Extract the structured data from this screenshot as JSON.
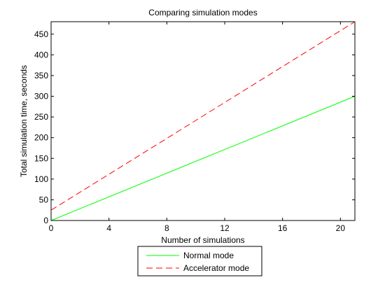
{
  "chart_data": {
    "type": "line",
    "title": "Comparing simulation modes",
    "xlabel": "Number of simulations",
    "ylabel": "Total simulation time, seconds",
    "xlim": [
      0,
      21
    ],
    "ylim": [
      0,
      480
    ],
    "xticks": [
      0,
      4,
      8,
      12,
      16,
      20
    ],
    "yticks": [
      0,
      50,
      100,
      150,
      200,
      250,
      300,
      350,
      400,
      450
    ],
    "grid": false,
    "legend_position": "bottom-outside",
    "series": [
      {
        "name": "Normal mode",
        "color": "#00ff00",
        "style": "solid",
        "x": [
          0,
          21
        ],
        "y": [
          0,
          300
        ]
      },
      {
        "name": "Accelerator mode",
        "color": "#ff0000",
        "style": "dashed",
        "x": [
          0,
          21
        ],
        "y": [
          25,
          480
        ]
      }
    ]
  }
}
